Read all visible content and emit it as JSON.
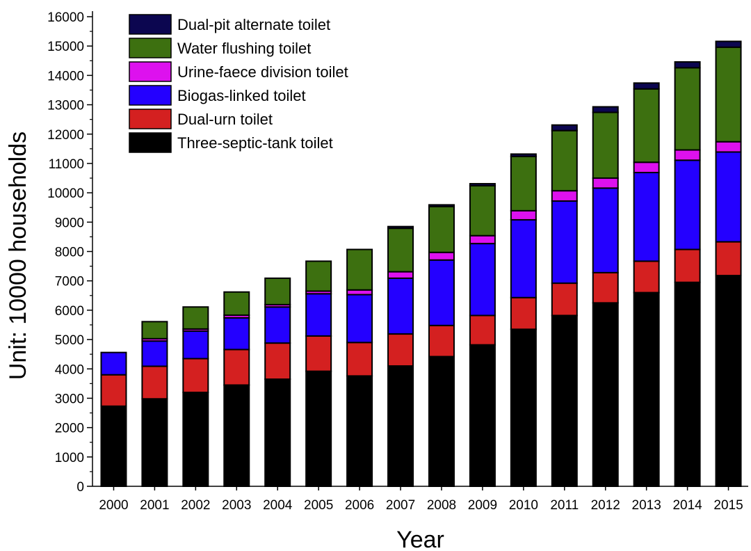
{
  "chart_data": {
    "type": "bar",
    "stacked": true,
    "title": "",
    "xlabel": "Year",
    "ylabel": "Unit: 10000 households",
    "ylim": [
      0,
      16000
    ],
    "yticks": [
      0,
      1000,
      2000,
      3000,
      4000,
      5000,
      6000,
      7000,
      8000,
      9000,
      10000,
      11000,
      12000,
      13000,
      14000,
      15000,
      16000
    ],
    "legend_position": "top-left",
    "categories": [
      "2000",
      "2001",
      "2002",
      "2003",
      "2004",
      "2005",
      "2006",
      "2007",
      "2008",
      "2009",
      "2010",
      "2011",
      "2012",
      "2013",
      "2014",
      "2015"
    ],
    "series": [
      {
        "name": "Three-septic-tank toilet",
        "color": "#000000",
        "values": [
          2730,
          2980,
          3200,
          3450,
          3650,
          3920,
          3760,
          4100,
          4420,
          4820,
          5350,
          5820,
          6250,
          6600,
          6950,
          7180
        ]
      },
      {
        "name": "Dual-urn toilet",
        "color": "#d42020",
        "values": [
          1070,
          1110,
          1150,
          1210,
          1230,
          1200,
          1140,
          1090,
          1060,
          1000,
          1080,
          1100,
          1030,
          1070,
          1120,
          1150
        ]
      },
      {
        "name": "Biogas-linked toilet",
        "color": "#2400ff",
        "values": [
          760,
          860,
          940,
          1080,
          1230,
          1440,
          1630,
          1900,
          2230,
          2450,
          2650,
          2800,
          2880,
          3020,
          3040,
          3060
        ]
      },
      {
        "name": "Urine-faece division toilet",
        "color": "#dd11ee",
        "values": [
          0,
          80,
          70,
          90,
          80,
          90,
          160,
          220,
          260,
          270,
          310,
          350,
          340,
          350,
          350,
          350
        ]
      },
      {
        "name": "Water flushing toilet",
        "color": "#3d7010",
        "values": [
          0,
          580,
          750,
          790,
          900,
          1020,
          1380,
          1480,
          1560,
          1700,
          1850,
          2050,
          2240,
          2500,
          2800,
          3220
        ]
      },
      {
        "name": "Dual-pit alternate toilet",
        "color": "#0c0650",
        "values": [
          0,
          0,
          0,
          0,
          0,
          0,
          0,
          60,
          60,
          70,
          80,
          190,
          190,
          200,
          200,
          200
        ]
      }
    ]
  }
}
